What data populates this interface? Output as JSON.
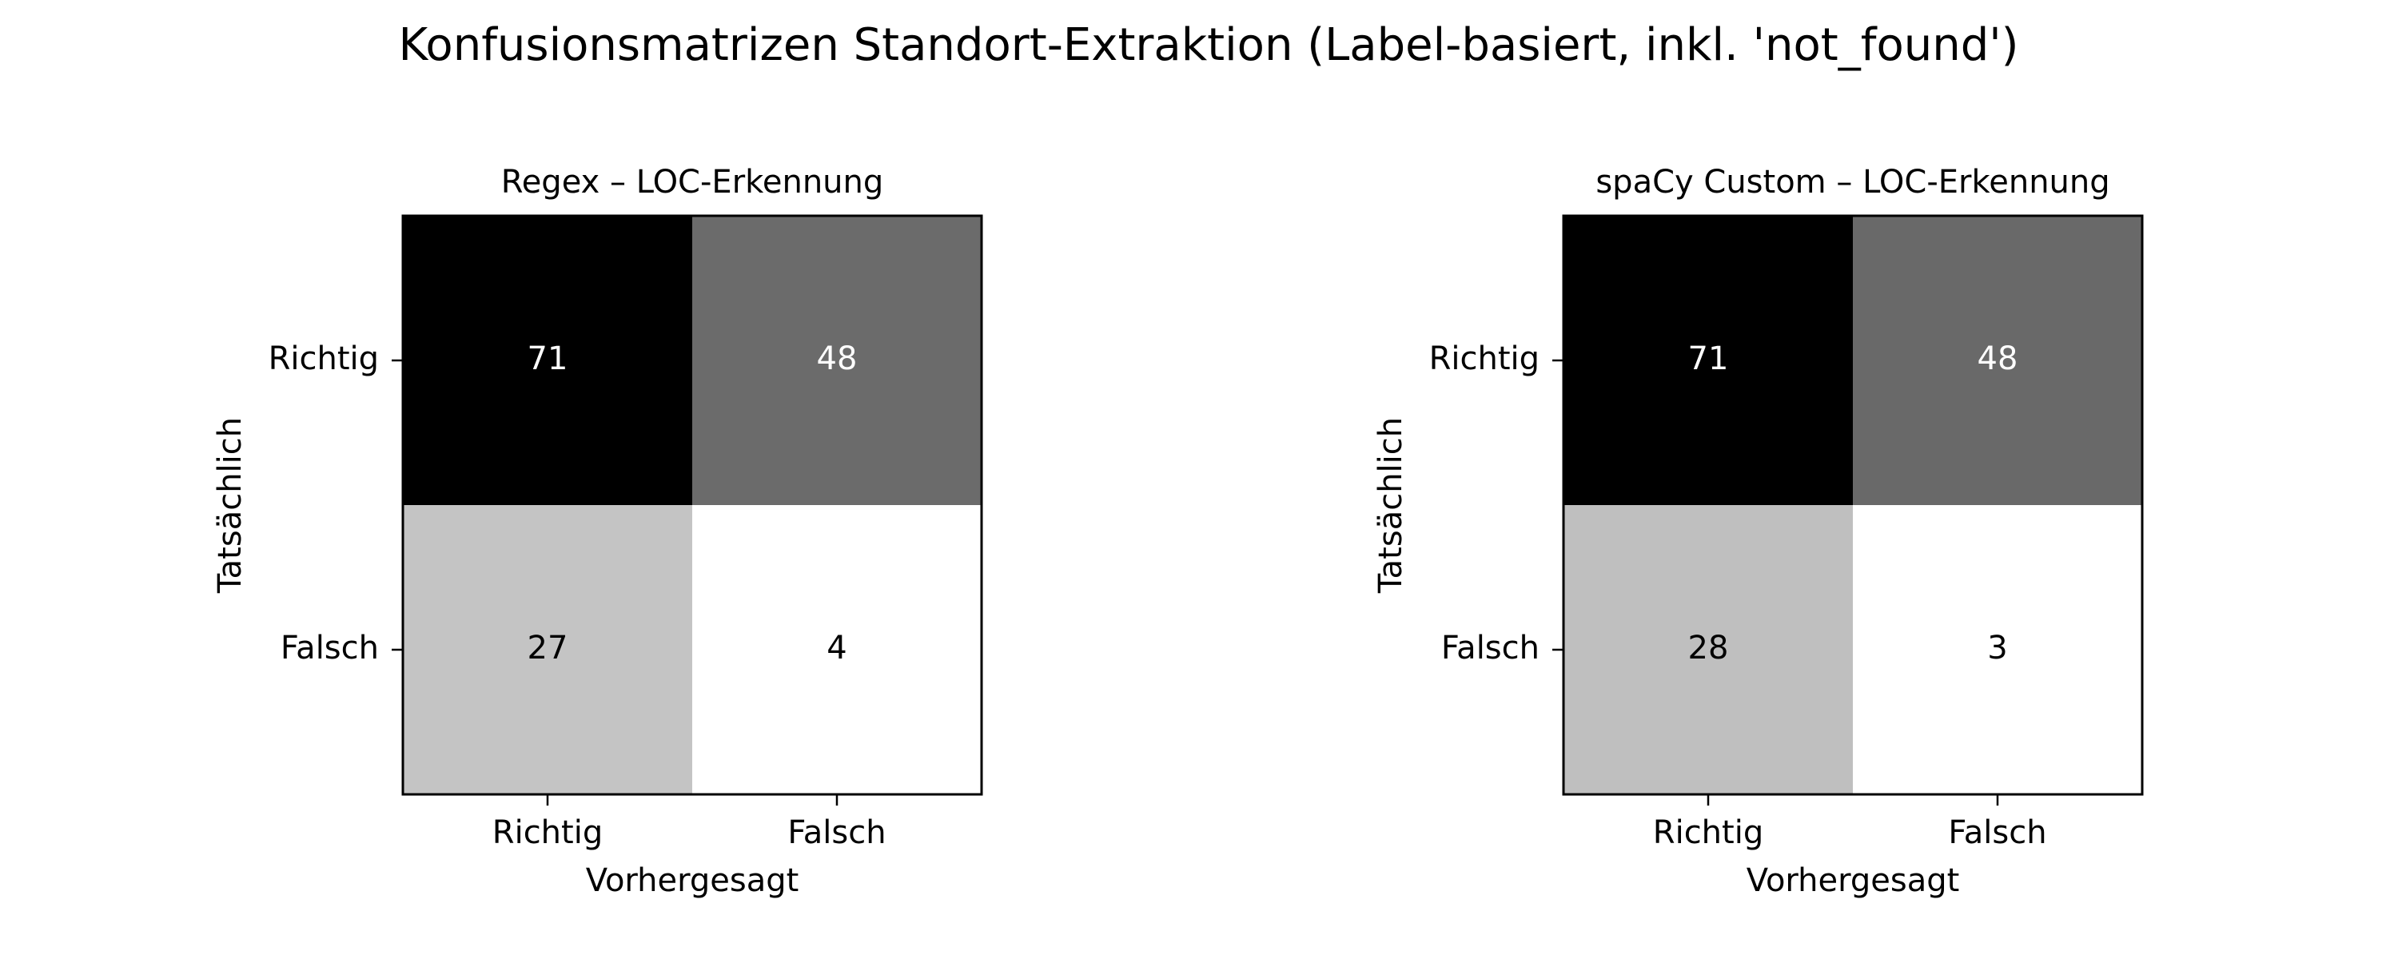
{
  "figure_title": "Konfusionsmatrizen Standort-Extraktion (Label-basiert, inkl. 'not_found')",
  "chart_data": [
    {
      "type": "heatmap",
      "title": "Regex – LOC-Erkennung",
      "xlabel": "Vorhergesagt",
      "ylabel": "Tatsächlich",
      "x_categories": [
        "Richtig",
        "Falsch"
      ],
      "y_categories": [
        "Richtig",
        "Falsch"
      ],
      "matrix": [
        [
          71,
          48
        ],
        [
          27,
          4
        ]
      ],
      "colormap": "Greys"
    },
    {
      "type": "heatmap",
      "title": "spaCy Custom – LOC-Erkennung",
      "xlabel": "Vorhergesagt",
      "ylabel": "Tatsächlich",
      "x_categories": [
        "Richtig",
        "Falsch"
      ],
      "y_categories": [
        "Richtig",
        "Falsch"
      ],
      "matrix": [
        [
          71,
          48
        ],
        [
          28,
          3
        ]
      ],
      "colormap": "Greys"
    }
  ]
}
